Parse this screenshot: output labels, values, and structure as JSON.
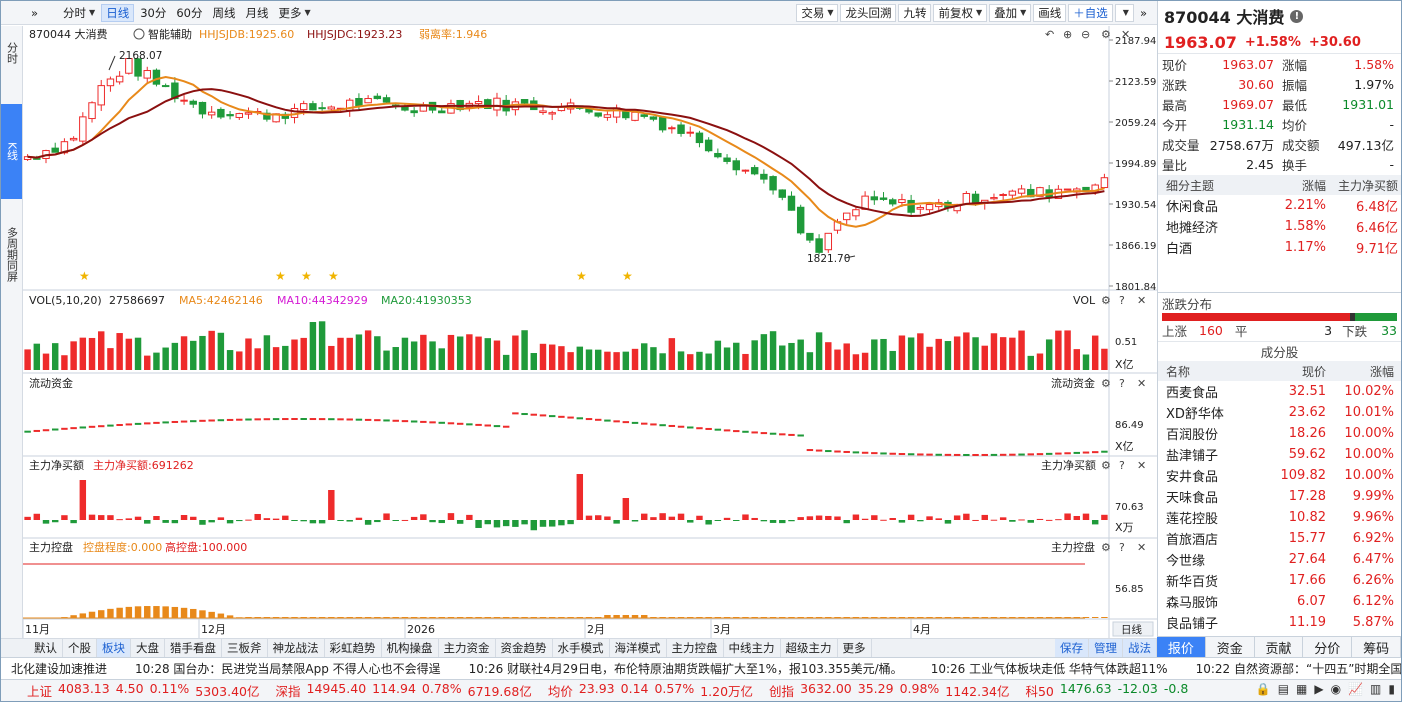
{
  "toolbar": {
    "left": [
      "»",
      "分时",
      "日线",
      "30分",
      "60分",
      "周线",
      "月线",
      "更多"
    ],
    "right": [
      "交易",
      "龙头回溯",
      "九转",
      "前复权",
      "叠加",
      "画线",
      "＋自选",
      "»"
    ]
  },
  "leftnav": {
    "items": [
      "分时",
      "K线",
      "多周期同屏"
    ]
  },
  "chart": {
    "symbol_label": "870044 大消费",
    "assist": "智能辅助",
    "ind1": "HHJSJDB:1925.60",
    "ind2": "HHJSJDC:1923.23",
    "ind3": "弱离率:1.946",
    "y_ticks": [
      "2187.94",
      "2123.59",
      "2059.24",
      "1994.89",
      "1930.54",
      "1866.19",
      "1801.84"
    ],
    "high_label": "2168.07",
    "low_label": "1821.70",
    "vol_title": "VOL(5,10,20)",
    "vol_val": "27586697",
    "vol_ma5": "MA5:42462146",
    "vol_ma10": "MA10:44342929",
    "vol_ma20": "MA20:41930353",
    "vol_right": "VOL",
    "vol_tick": "0.51",
    "vol_unit": "X亿",
    "flow_title": "流动资金",
    "flow_right": "流动资金",
    "flow_tick": "86.49",
    "flow_unit": "X亿",
    "main_title": "主力净买额",
    "main_val": "主力净买额:691262",
    "main_right": "主力净买额",
    "main_tick": "70.63",
    "main_unit": "X万",
    "ctrl_title": "主力控盘",
    "ctrl_val": "控盘程度:0.000",
    "ctrl_high": "高控盘:100.000",
    "ctrl_right": "主力控盘",
    "ctrl_tick": "56.85",
    "period_btn": "日线",
    "x_labels": [
      "11月",
      "12月",
      "2026",
      "2月",
      "3月",
      "4月"
    ],
    "colors": {
      "up": "#ee2b2b",
      "down": "#1f9a3a",
      "ma_a": "#e8891a",
      "ma_b": "#8b1010"
    }
  },
  "chart_data": {
    "type": "candlestick",
    "ylim": [
      1801.84,
      2187.94
    ],
    "high": 2168.07,
    "low": 1821.7,
    "x_ticks": [
      "11月",
      "12月",
      "2026",
      "2月",
      "3月",
      "4月"
    ]
  },
  "bottom_tabs": [
    "默认",
    "个股",
    "板块",
    "大盘",
    "猎手看盘",
    "三板斧",
    "神龙战法",
    "彩虹趋势",
    "机构操盘",
    "主力资金",
    "资金趋势",
    "水手模式",
    "海洋模式",
    "主力控盘",
    "中线主力",
    "超级主力",
    "更多"
  ],
  "bottom_right": [
    "保存",
    "管理",
    "战法"
  ],
  "panel": {
    "code": "870044 大消费",
    "info": "!",
    "price": "1963.07",
    "pct": "+1.58%",
    "chg": "+30.60",
    "quote": [
      {
        "l": "现价",
        "v": "1963.07",
        "l2": "涨幅",
        "v2": "1.58%",
        "c": "red",
        "c2": "red"
      },
      {
        "l": "涨跌",
        "v": "30.60",
        "l2": "振幅",
        "v2": "1.97%",
        "c": "red",
        "c2": "blk"
      },
      {
        "l": "最高",
        "v": "1969.07",
        "l2": "最低",
        "v2": "1931.01",
        "c": "red",
        "c2": "green"
      },
      {
        "l": "今开",
        "v": "1931.14",
        "l2": "均价",
        "v2": "-",
        "c": "green",
        "c2": "blk"
      },
      {
        "l": "成交量",
        "v": "2758.67万",
        "l2": "成交额",
        "v2": "497.13亿",
        "c": "blk",
        "c2": "blk"
      },
      {
        "l": "量比",
        "v": "2.45",
        "l2": "换手",
        "v2": "-",
        "c": "blk",
        "c2": "blk"
      }
    ],
    "themes_head": [
      "细分主题",
      "涨幅",
      "主力净买额"
    ],
    "themes": [
      {
        "n": "休闲食品",
        "a": "2.21%",
        "b": "6.48亿"
      },
      {
        "n": "地摊经济",
        "a": "1.58%",
        "b": "6.46亿"
      },
      {
        "n": "白酒",
        "a": "1.17%",
        "b": "9.71亿"
      }
    ],
    "dist_title": "涨跌分布",
    "dist": {
      "up_label": "上涨",
      "up": "160",
      "flat_label": "平",
      "flat": "3",
      "down_label": "下跌",
      "down": "33"
    },
    "const_title": "成分股",
    "const_head": [
      "名称",
      "现价",
      "涨幅"
    ],
    "constituents": [
      {
        "n": "西麦食品",
        "p": "32.51",
        "c": "10.02%"
      },
      {
        "n": "XD舒华体",
        "p": "23.62",
        "c": "10.01%"
      },
      {
        "n": "百润股份",
        "p": "18.26",
        "c": "10.00%"
      },
      {
        "n": "盐津铺子",
        "p": "59.62",
        "c": "10.00%"
      },
      {
        "n": "安井食品",
        "p": "109.82",
        "c": "10.00%"
      },
      {
        "n": "天味食品",
        "p": "17.28",
        "c": "9.99%"
      },
      {
        "n": "莲花控股",
        "p": "10.82",
        "c": "9.96%"
      },
      {
        "n": "首旅酒店",
        "p": "15.77",
        "c": "6.92%"
      },
      {
        "n": "今世缘",
        "p": "27.64",
        "c": "6.47%"
      },
      {
        "n": "新华百货",
        "p": "17.66",
        "c": "6.26%"
      },
      {
        "n": "森马服饰",
        "p": "6.07",
        "c": "6.12%"
      },
      {
        "n": "良品铺子",
        "p": "11.19",
        "c": "5.87%"
      }
    ],
    "tabs": [
      "报价",
      "资金",
      "贡献",
      "分价",
      "筹码"
    ]
  },
  "news": [
    "北化建设加速推进",
    "10:28 国台办：民进党当局禁限App 不得人心也不会得逞",
    "10:26 财联社4月29日电，布伦特原油期货跌幅扩大至1%，报103.355美元/桶。",
    "10:26 工业气体板块走低 华特气体跌超11%",
    "10:22 自然资源部：“十四五”时期全国累计投入"
  ],
  "indices": [
    {
      "n": "上证",
      "a": "4083.13",
      "b": "4.50",
      "c": "0.11%",
      "d": "5303.40亿"
    },
    {
      "n": "深指",
      "a": "14945.40",
      "b": "114.94",
      "c": "0.78%",
      "d": "6719.68亿"
    },
    {
      "n": "均价",
      "a": "23.93",
      "b": "0.14",
      "c": "0.57%",
      "d": "1.20万亿"
    },
    {
      "n": "创指",
      "a": "3632.00",
      "b": "35.29",
      "c": "0.98%",
      "d": "1142.34亿"
    },
    {
      "n": "科50",
      "a": "1476.63",
      "b": "-12.03",
      "c": "-0.8",
      "d": ""
    }
  ]
}
